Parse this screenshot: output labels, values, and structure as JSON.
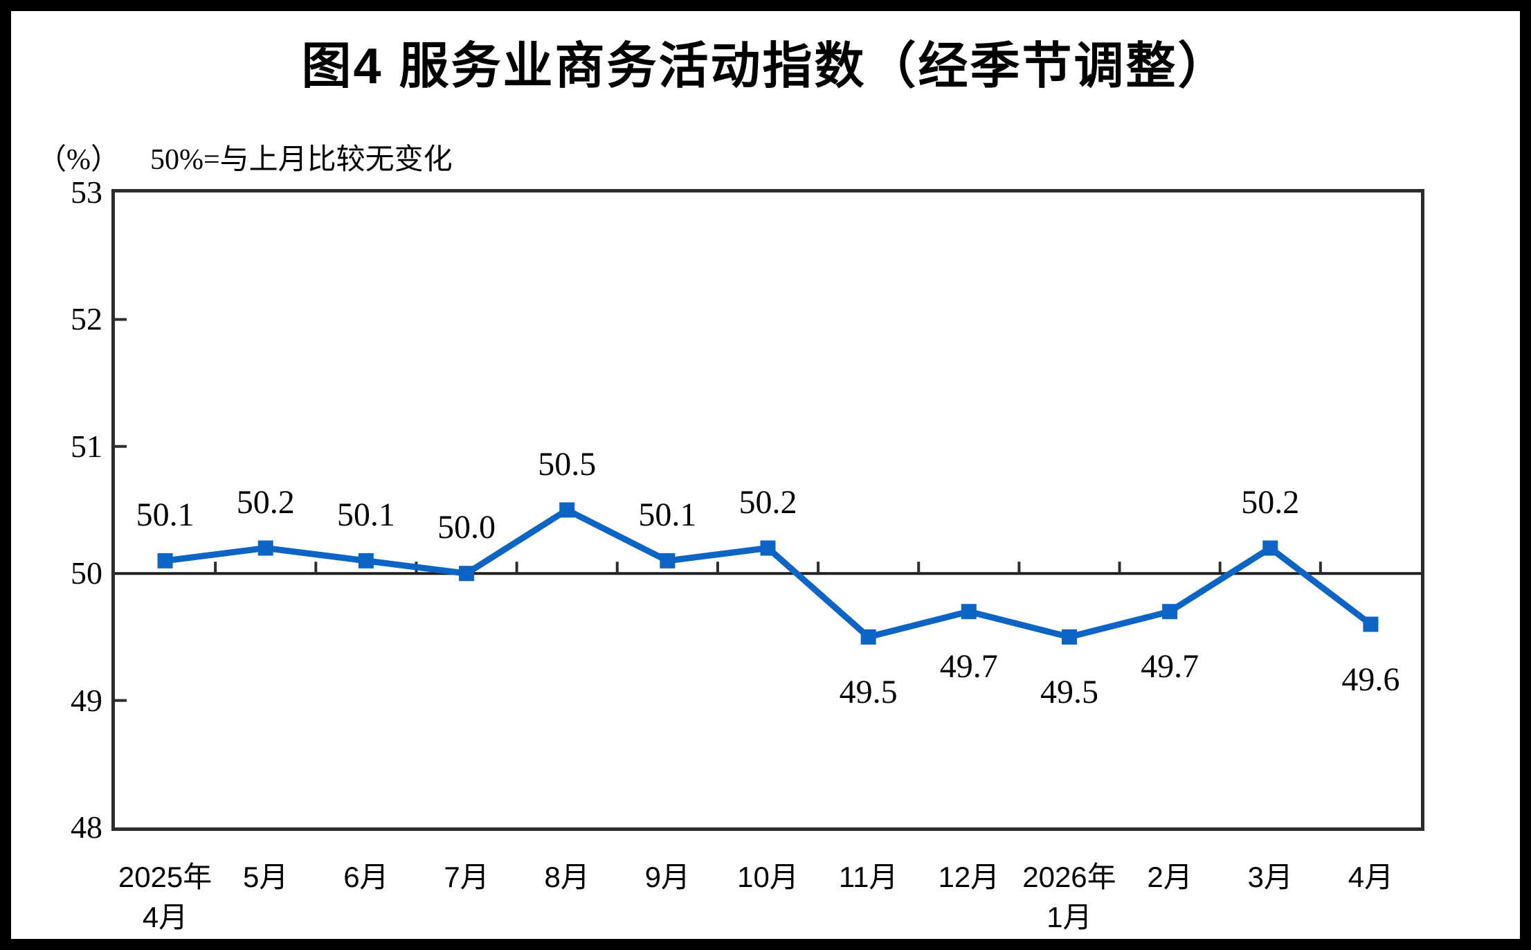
{
  "title": "图4 服务业商务活动指数（经季节调整）",
  "subtitle": {
    "unit": "（%）",
    "note": "50%=与上月比较无变化"
  },
  "colors": {
    "line": "#0D64C4",
    "axis": "#2D2D2D",
    "text": "#000000",
    "frame": "#000000"
  },
  "chart_data": {
    "type": "line",
    "title": "图4 服务业商务活动指数（经季节调整）",
    "xlabel": "",
    "ylabel": "（%）",
    "x": [
      "2025年4月",
      "5月",
      "6月",
      "7月",
      "8月",
      "9月",
      "10月",
      "11月",
      "12月",
      "2026年1月",
      "2月",
      "3月",
      "4月"
    ],
    "x_tick_lines": [
      [
        "2025年",
        "4月"
      ],
      [
        "5月"
      ],
      [
        "6月"
      ],
      [
        "7月"
      ],
      [
        "8月"
      ],
      [
        "9月"
      ],
      [
        "10月"
      ],
      [
        "11月"
      ],
      [
        "12月"
      ],
      [
        "2026年",
        "1月"
      ],
      [
        "2月"
      ],
      [
        "3月"
      ],
      [
        "4月"
      ]
    ],
    "series": [
      {
        "name": "服务业商务活动指数（经季节调整）",
        "values": [
          50.1,
          50.2,
          50.1,
          50.0,
          50.5,
          50.1,
          50.2,
          49.5,
          49.7,
          49.5,
          49.7,
          50.2,
          49.6
        ]
      }
    ],
    "ylim": [
      48,
      53
    ],
    "yticks": [
      48,
      49,
      50,
      51,
      52,
      53
    ],
    "baseline": 50,
    "label_position": [
      "above",
      "above",
      "above",
      "above",
      "above",
      "above",
      "above",
      "below",
      "below",
      "below",
      "below",
      "above",
      "below"
    ],
    "marker": "square",
    "grid": false,
    "legend": "none"
  }
}
